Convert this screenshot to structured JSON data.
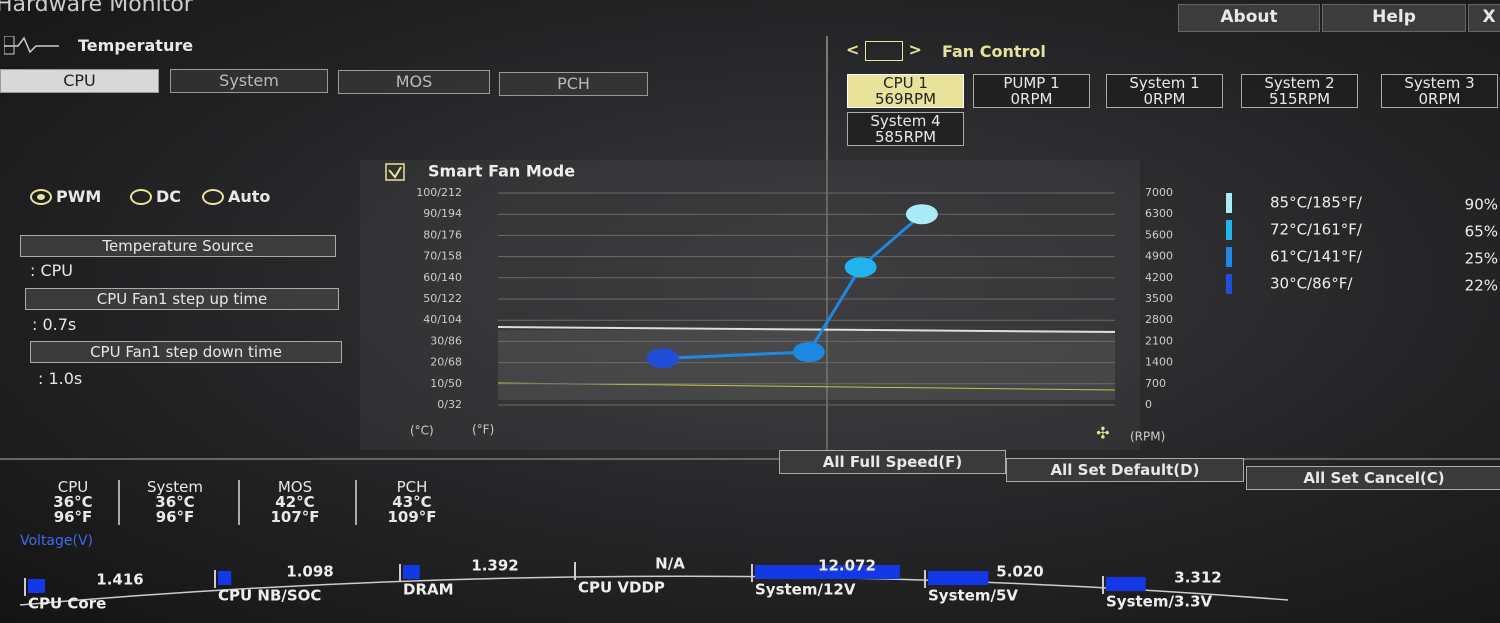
{
  "header": {
    "title": "Hardware Monitor",
    "menu": [
      "About",
      "Help",
      "X"
    ]
  },
  "temperature": {
    "title": "Temperature",
    "tabs": [
      "CPU",
      "System",
      "MOS",
      "PCH"
    ]
  },
  "fan_control": {
    "title": "Fan Control",
    "fans": [
      {
        "name": "CPU 1",
        "speed": "569RPM"
      },
      {
        "name": "PUMP 1",
        "speed": "0RPM"
      },
      {
        "name": "System 1",
        "speed": "0RPM"
      },
      {
        "name": "System 2",
        "speed": "515RPM"
      },
      {
        "name": "System 3",
        "speed": "0RPM"
      },
      {
        "name": "System 4",
        "speed": "585RPM"
      }
    ]
  },
  "settings": {
    "modes": [
      "PWM",
      "DC",
      "Auto"
    ],
    "source_label": "Temperature Source",
    "source_value": ": CPU",
    "step_up_label": "CPU Fan1 step up time",
    "step_up_value": ": 0.7s",
    "step_down_label": "CPU Fan1 step down time",
    "step_down_value": ": 1.0s"
  },
  "chart_data": {
    "type": "line",
    "title": "Smart Fan Mode",
    "xlabel": "(°C)",
    "xlabel2": "(°F)",
    "y2label": "(RPM)",
    "xlim": [
      -5,
      126
    ],
    "ylim": [
      0,
      100
    ],
    "yticks": [
      {
        "value": 0,
        "label": "0/32"
      },
      {
        "value": 10,
        "label": "10/50"
      },
      {
        "value": 20,
        "label": "20/68"
      },
      {
        "value": 30,
        "label": "30/86"
      },
      {
        "value": 40,
        "label": "40/104"
      },
      {
        "value": 50,
        "label": "50/122"
      },
      {
        "value": 60,
        "label": "60/140"
      },
      {
        "value": 70,
        "label": "70/158"
      },
      {
        "value": 80,
        "label": "80/176"
      },
      {
        "value": 90,
        "label": "90/194"
      },
      {
        "value": 100,
        "label": "100/212"
      }
    ],
    "y2lim": [
      0,
      7000
    ],
    "y2ticks": [
      0,
      700,
      1400,
      2100,
      2800,
      3500,
      4200,
      4900,
      5600,
      6300,
      7000
    ],
    "grid": true,
    "series": [
      {
        "color": "#1e88e5",
        "x": [
          30,
          61,
          72,
          85
        ],
        "values": [
          22,
          25,
          65,
          90
        ],
        "x_labels": [
          "30°C/86°F/",
          "61°C/141°F/",
          "72°C/161°F/",
          "85°C/185°F/"
        ],
        "value_labels": [
          "22%",
          "25%",
          "65%",
          "90%"
        ],
        "colors": [
          "#1f4fd8",
          "#1e88e5",
          "#22b4ee",
          "#a9ecf8"
        ]
      }
    ]
  },
  "summary": [
    {
      "name": "CPU",
      "c": "36°C",
      "f": "96°F"
    },
    {
      "name": "System",
      "c": "36°C",
      "f": "96°F"
    },
    {
      "name": "MOS",
      "c": "42°C",
      "f": "107°F"
    },
    {
      "name": "PCH",
      "c": "43°C",
      "f": "109°F"
    }
  ],
  "voltage": {
    "title": "Voltage(V)",
    "items": [
      {
        "name": "CPU Core",
        "value": 1.416
      },
      {
        "name": "CPU NB/SOC",
        "value": 1.098
      },
      {
        "name": "DRAM",
        "value": 1.392
      },
      {
        "name": "CPU VDDP",
        "value": "N/A"
      },
      {
        "name": "System/12V",
        "value": 12.072
      },
      {
        "name": "System/5V",
        "value": 5.02,
        "label": "5.020"
      },
      {
        "name": "System/3.3V",
        "value": 3.312
      }
    ]
  },
  "buttons": [
    "All Full Speed(F)",
    "All Set Default(D)",
    "All Set Cancel(C)"
  ]
}
